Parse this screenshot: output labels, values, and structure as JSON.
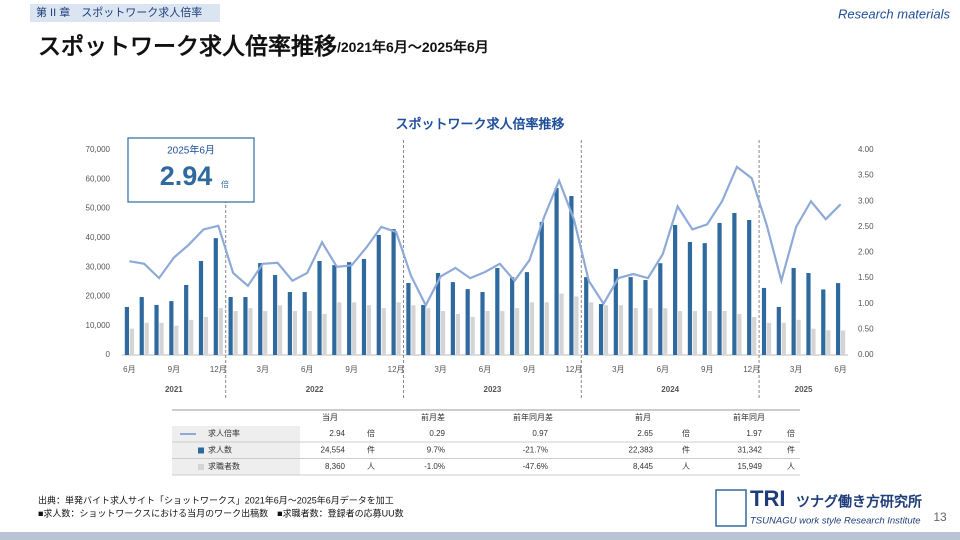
{
  "header": {
    "chapter": "第 II 章　スポットワーク求人倍率",
    "tag": "Research materials",
    "title": "スポットワーク求人倍率推移",
    "subtitle": "/2021年6月～2025年6月"
  },
  "chart_data": {
    "type": "bar",
    "title": "スポットワーク求人倍率推移",
    "categories": [
      "6月",
      null,
      null,
      "9月",
      null,
      null,
      "12月",
      null,
      null,
      "3月",
      null,
      null,
      "6月",
      null,
      null,
      "9月",
      null,
      null,
      "12月",
      null,
      null,
      "3月",
      null,
      null,
      "6月",
      null,
      null,
      "9月",
      null,
      null,
      "12月",
      null,
      null,
      "3月",
      null,
      null,
      "6月",
      null,
      null,
      "9月",
      null,
      null,
      "12月",
      null,
      null,
      "3月",
      null,
      null,
      "6月"
    ],
    "years": [
      "2021",
      "2022",
      "2023",
      "2024",
      "2025"
    ],
    "series": [
      {
        "name": "求人数",
        "color": "#2f6a9f",
        "values": [
          16400,
          19800,
          17100,
          18400,
          23900,
          32100,
          39900,
          19800,
          19800,
          31400,
          27300,
          21500,
          21500,
          32100,
          30700,
          31700,
          32800,
          41000,
          43000,
          24600,
          17100,
          28000,
          24900,
          22500,
          21500,
          29700,
          26600,
          28300,
          45400,
          57000,
          54300,
          26600,
          17400,
          29400,
          26600,
          25600,
          31342,
          44400,
          38600,
          38200,
          45100,
          48500,
          46100,
          22900,
          16400,
          29700,
          28000,
          22383,
          24554
        ]
      },
      {
        "name": "求職者数",
        "color": "#d4d4d4",
        "values": [
          9000,
          11000,
          11000,
          10000,
          12000,
          13000,
          16000,
          15000,
          16000,
          15000,
          17000,
          15000,
          15000,
          14000,
          18000,
          18000,
          17000,
          16000,
          18000,
          17000,
          16000,
          15000,
          14000,
          13000,
          15000,
          15000,
          16000,
          18000,
          18000,
          21000,
          20000,
          18000,
          17000,
          17000,
          16000,
          16000,
          15949,
          15000,
          15000,
          15000,
          15000,
          14000,
          13000,
          11000,
          11000,
          12000,
          9000,
          8445,
          8360
        ]
      },
      {
        "name": "求人倍率",
        "type": "line",
        "axis": "y2",
        "color": "#8eaad8",
        "values": [
          1.83,
          1.78,
          1.5,
          1.9,
          2.15,
          2.45,
          2.52,
          1.6,
          1.35,
          1.78,
          1.8,
          1.45,
          1.6,
          2.2,
          1.72,
          1.75,
          2.1,
          2.5,
          2.4,
          1.55,
          0.97,
          1.53,
          1.7,
          1.5,
          1.62,
          1.78,
          1.45,
          1.85,
          2.7,
          3.4,
          2.65,
          1.45,
          1.0,
          1.5,
          1.58,
          1.5,
          1.97,
          2.9,
          2.45,
          2.55,
          3.0,
          3.67,
          3.45,
          2.55,
          1.45,
          2.5,
          3.0,
          2.65,
          2.94
        ]
      }
    ],
    "ylim": [
      0,
      70000
    ],
    "yticks": [
      0,
      {
        "value": 10000,
        "label": "10,000"
      },
      {
        "value": 20000,
        "label": "20,000"
      },
      {
        "value": 30000,
        "label": "30,000"
      },
      {
        "value": 40000,
        "label": "40,000"
      },
      {
        "value": 50000,
        "label": "50,000"
      },
      {
        "value": 60000,
        "label": "60,000"
      },
      {
        "value": 70000,
        "label": "70,000"
      }
    ],
    "y2lim": [
      0,
      4
    ],
    "y2ticks": [
      {
        "value": 0,
        "label": "0.00"
      },
      {
        "value": 0.5,
        "label": "0.50"
      },
      {
        "value": 1,
        "label": "1.00"
      },
      {
        "value": 1.5,
        "label": "1.50"
      },
      {
        "value": 2,
        "label": "2.00"
      },
      {
        "value": 2.5,
        "label": "2.50"
      },
      {
        "value": 3,
        "label": "3.00"
      },
      {
        "value": 3.5,
        "label": "3.50"
      },
      {
        "value": 4,
        "label": "4.00"
      }
    ],
    "callout": {
      "label": "2025年6月",
      "unit": "倍"
    }
  },
  "table": {
    "header": [
      "当月",
      "前月差",
      "前年同月差",
      "前月",
      "前年同月"
    ],
    "rows": [
      [
        "求人倍率",
        "2.94",
        "倍",
        "0.29",
        "0.97",
        "2.65",
        "倍",
        "1.97",
        "倍"
      ],
      [
        "求人数",
        "24,554",
        "件",
        "9.7%",
        "-21.7%",
        "22,383",
        "件",
        "31,342",
        "件"
      ],
      [
        "求職者数",
        "8,360",
        "人",
        "-1.0%",
        "-47.6%",
        "8,445",
        "人",
        "15,949",
        "人"
      ]
    ]
  },
  "footer": {
    "notes": [
      "出典：単発バイト求人サイト「ショットワークス」2021年6月～2025年6月データを加工",
      "■求人数：ショットワークスにおける当月のワーク出稿数　■求職者数：登録者の応募UU数"
    ],
    "logo": {
      "mark": "TRI",
      "name": "ツナグ働き方研究所",
      "english": "TSUNAGU work style Research Institute"
    },
    "page": "13"
  }
}
